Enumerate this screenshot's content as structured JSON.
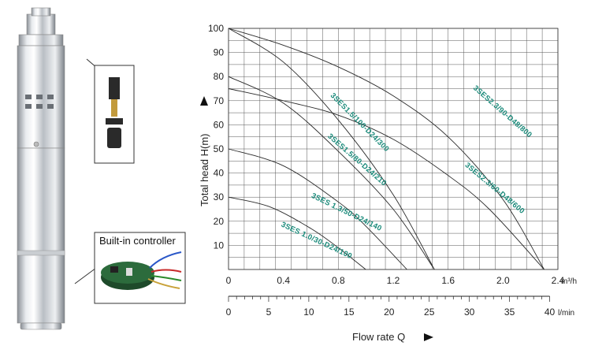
{
  "product": {
    "inset_label": "Built-in controller"
  },
  "chart_data": {
    "type": "line",
    "xlabel": "Flow rate Q",
    "ylabel": "Total head H(m)",
    "x_unit_primary": "m³/h",
    "x_unit_secondary": "l/min",
    "xlim": [
      0,
      2.4
    ],
    "ylim": [
      0,
      100
    ],
    "x_ticks_primary": [
      "0",
      "0.4",
      "0.8",
      "1.2",
      "1.6",
      "2.0",
      "2.4"
    ],
    "x_ticks_secondary": [
      "0",
      "5",
      "10",
      "15",
      "20",
      "25",
      "30",
      "35",
      "40"
    ],
    "y_ticks": [
      "10",
      "20",
      "30",
      "40",
      "50",
      "60",
      "70",
      "80",
      "90",
      "100"
    ],
    "grid": true,
    "series": [
      {
        "name": "3SES 1.0/30-D24/100",
        "x": [
          0,
          0.3,
          0.6,
          0.8,
          1.0
        ],
        "y": [
          30,
          26,
          17,
          9,
          0
        ]
      },
      {
        "name": "3SES 1.3/50-D24/140",
        "x": [
          0,
          0.4,
          0.8,
          1.0,
          1.3
        ],
        "y": [
          50,
          43,
          28,
          18,
          0
        ]
      },
      {
        "name": "3SES1.5/80-D24/210",
        "x": [
          0,
          0.4,
          0.8,
          1.2,
          1.5
        ],
        "y": [
          80,
          69,
          49,
          25,
          0
        ]
      },
      {
        "name": "3SES1.5/100-D24/300",
        "x": [
          0,
          0.4,
          0.8,
          1.2,
          1.5
        ],
        "y": [
          100,
          86,
          62,
          31,
          0
        ]
      },
      {
        "name": "3SES2.3/60-D48/600",
        "x": [
          0,
          0.4,
          0.8,
          1.2,
          1.6,
          1.9,
          2.3
        ],
        "y": [
          75,
          70,
          64,
          54,
          39,
          25,
          0
        ]
      },
      {
        "name": "3SES2.3/90-D48/800",
        "x": [
          0,
          0.4,
          0.8,
          1.2,
          1.6,
          2.0,
          2.3
        ],
        "y": [
          100,
          93,
          84,
          72,
          55,
          29,
          0
        ]
      }
    ]
  }
}
